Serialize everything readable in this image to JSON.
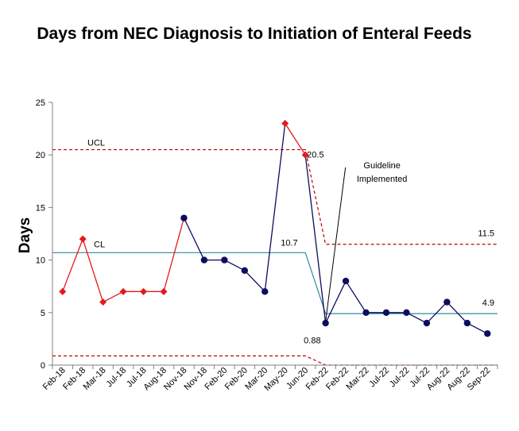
{
  "chart_data": {
    "type": "line",
    "title": "Days from NEC Diagnosis to Initiation of Enteral Feeds",
    "ylabel": "Days",
    "xlabel": "",
    "ylim": [
      0,
      25
    ],
    "yticks": [
      0,
      5,
      10,
      15,
      20,
      25
    ],
    "grid": false,
    "categories": [
      "Feb-18",
      "Feb-18",
      "Mar-18",
      "Jul-18",
      "Jul-18",
      "Aug-18",
      "Nov-18",
      "Nov-18",
      "Feb-20",
      "Feb-20",
      "Mar-20",
      "May-20",
      "Jun-20",
      "Feb-22",
      "Feb-22",
      "Mar-22",
      "Jul-22",
      "Jul-22",
      "Jul-22",
      "Aug-22",
      "Aug-22",
      "Sep-22"
    ],
    "values": [
      7,
      12,
      6,
      7,
      7,
      7,
      14,
      10,
      10,
      9,
      7,
      23,
      20,
      4,
      8,
      5,
      5,
      5,
      4,
      6,
      4,
      3
    ],
    "point_colors": [
      "#e31a1c",
      "#e31a1c",
      "#e31a1c",
      "#e31a1c",
      "#e31a1c",
      "#e31a1c",
      "#0d0d5e",
      "#0d0d5e",
      "#0d0d5e",
      "#0d0d5e",
      "#0d0d5e",
      "#e31a1c",
      "#e31a1c",
      "#0d0d5e",
      "#0d0d5e",
      "#0d0d5e",
      "#0d0d5e",
      "#0d0d5e",
      "#0d0d5e",
      "#0d0d5e",
      "#0d0d5e",
      "#0d0d5e"
    ],
    "point_shapes": [
      "diamond",
      "diamond",
      "diamond",
      "diamond",
      "diamond",
      "diamond",
      "circle",
      "circle",
      "circle",
      "circle",
      "circle",
      "diamond",
      "diamond",
      "circle",
      "circle",
      "circle",
      "circle",
      "circle",
      "circle",
      "circle",
      "circle",
      "circle"
    ],
    "segment_colors": [
      "#e31a1c",
      "#e31a1c",
      "#e31a1c",
      "#e31a1c",
      "#e31a1c",
      "#e31a1c",
      "#0d0d5e",
      "#0d0d5e",
      "#0d0d5e",
      "#0d0d5e",
      "#0d0d5e",
      "#e31a1c",
      "#0d0d5e",
      "#0d0d5e",
      "#0d0d5e",
      "#0d0d5e",
      "#0d0d5e",
      "#0d0d5e",
      "#0d0d5e",
      "#0d0d5e",
      "#0d0d5e"
    ],
    "control_limits": {
      "ucl": {
        "label": "UCL",
        "before": 20.5,
        "after": 11.5,
        "color": "#c00000"
      },
      "cl": {
        "label": "CL",
        "before": 10.7,
        "after": 4.9,
        "color": "#2e8b9e"
      },
      "lcl": {
        "before": 0.88,
        "after": 0,
        "color": "#c00000"
      },
      "change_index": 13
    },
    "value_labels": {
      "ucl_before": "20.5",
      "ucl_after": "11.5",
      "cl_before": "10.7",
      "cl_after": "4.9",
      "lcl_before": "0.88"
    },
    "annotation": {
      "text_line1": "Guideline",
      "text_line2": "Implemented",
      "point_index": 13
    }
  }
}
